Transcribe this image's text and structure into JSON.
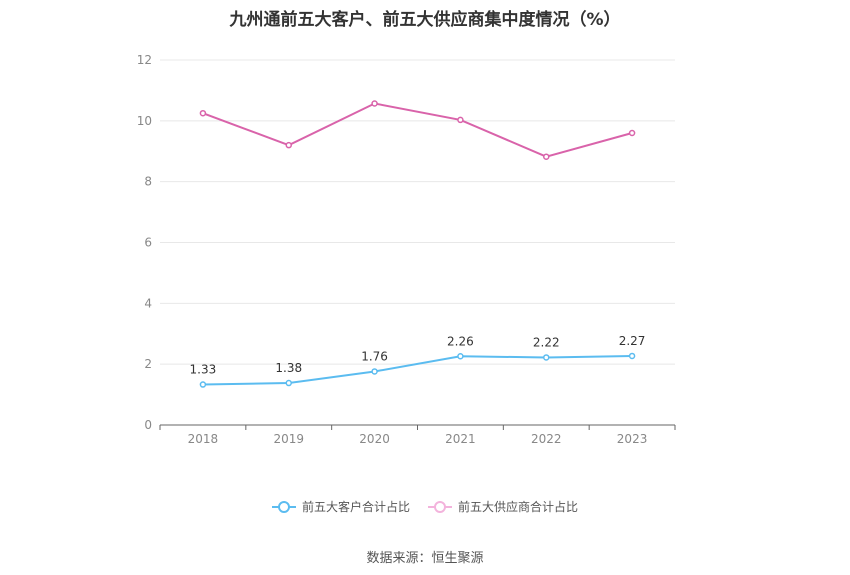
{
  "title": "九州通前五大客户、前五大供应商集中度情况（%）",
  "source": "数据来源：恒生聚源",
  "chart_data": {
    "type": "line",
    "title": "九州通前五大客户、前五大供应商集中度情况（%）",
    "categories": [
      "2018",
      "2019",
      "2020",
      "2021",
      "2022",
      "2023"
    ],
    "ylim": [
      0,
      12
    ],
    "yticks": [
      0,
      2,
      4,
      6,
      8,
      10,
      12
    ],
    "grid": true,
    "legend_position": "bottom",
    "series": [
      {
        "name": "前五大客户合计占比",
        "color": "#5bbcf0",
        "values": [
          1.33,
          1.38,
          1.76,
          2.26,
          2.22,
          2.27
        ],
        "show_labels": true
      },
      {
        "name": "前五大供应商合计占比",
        "color": "#d963aa",
        "values": [
          10.25,
          9.2,
          10.57,
          10.03,
          8.82,
          9.6
        ],
        "show_labels": false
      }
    ]
  }
}
